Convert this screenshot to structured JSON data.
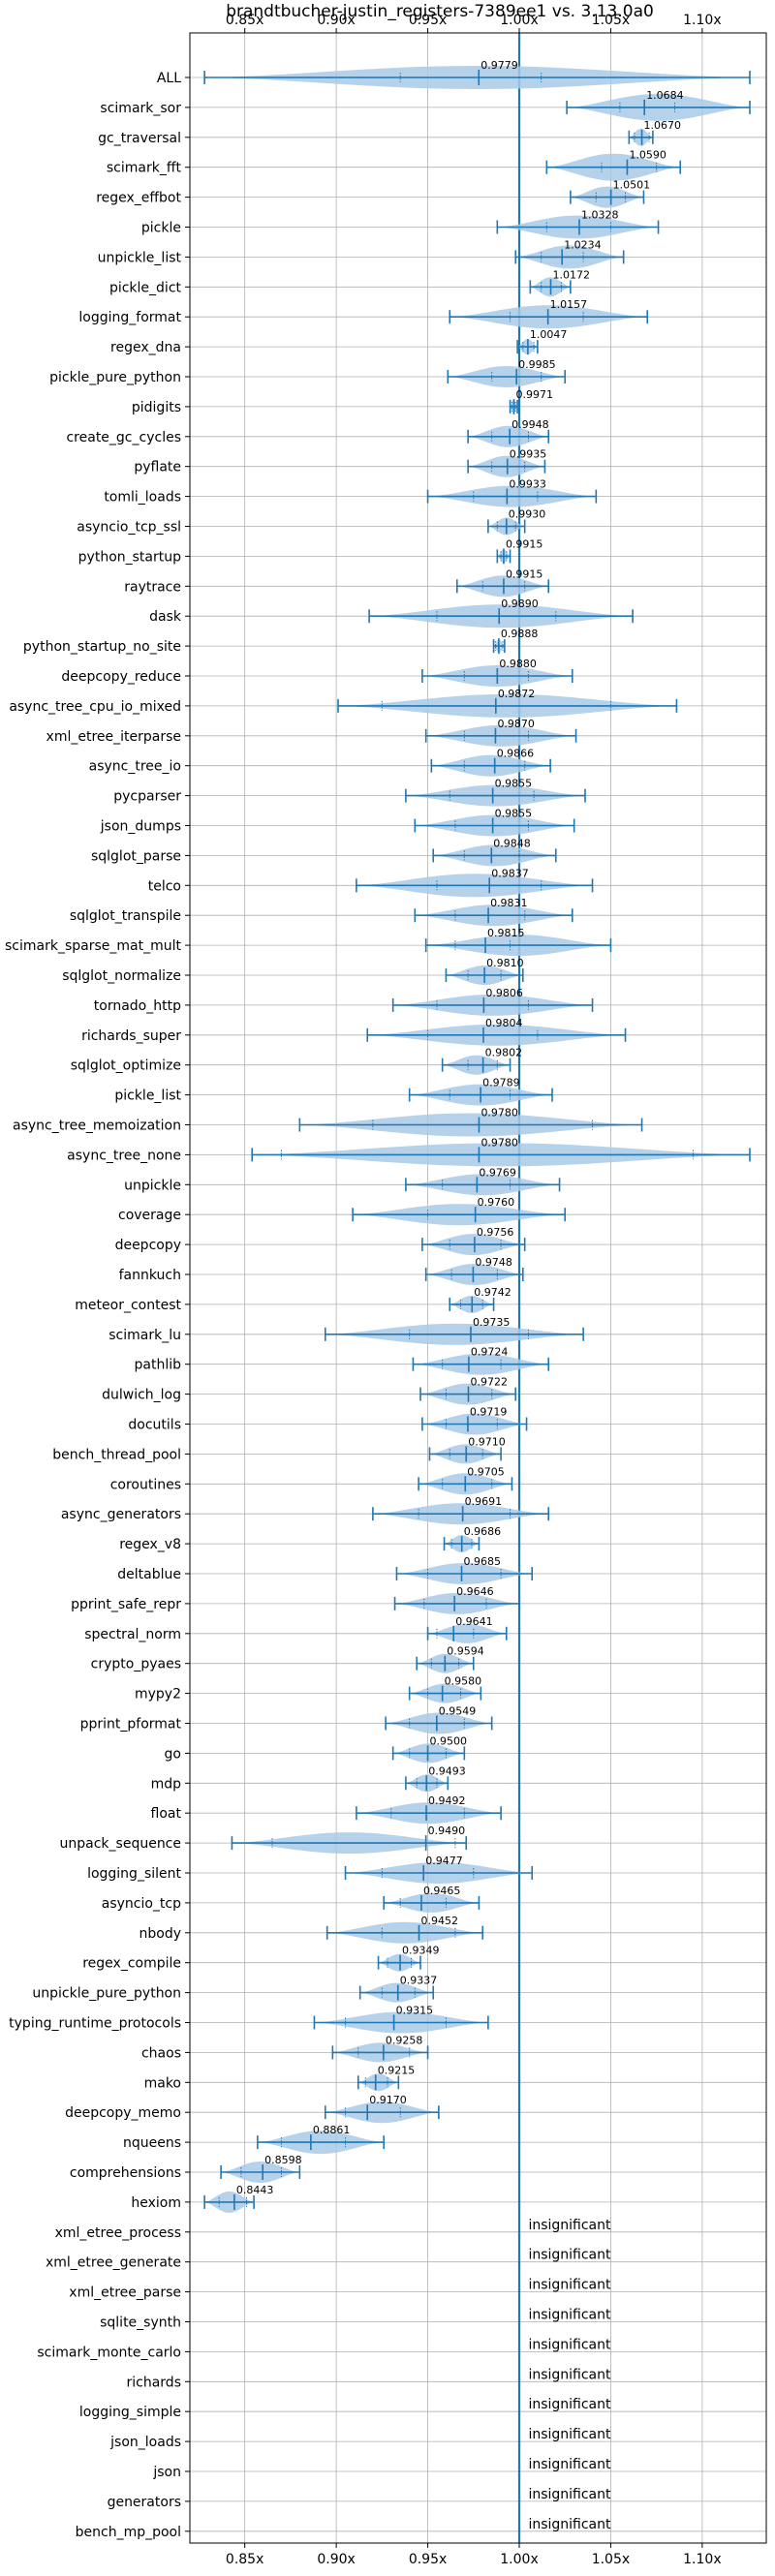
{
  "chart_data": {
    "type": "violin",
    "title": "brandtbucher-justin_registers-7389ee1 vs. 3.13.0a0",
    "xlabel": "",
    "ylabel": "",
    "xlim": [
      0.82,
      1.135
    ],
    "xticks": [
      0.85,
      0.9,
      0.95,
      1.0,
      1.05,
      1.1
    ],
    "xtick_labels": [
      "0.85x",
      "0.90x",
      "0.95x",
      "1.00x",
      "1.05x",
      "1.10x"
    ],
    "reference_line": 1.0,
    "grid": true,
    "colors": {
      "violin": "#a9c9e6",
      "line": "#1f77b4",
      "grid": "#b0b0b0"
    },
    "benchmarks": [
      {
        "name": "ALL",
        "label": "0.9779",
        "mean": 0.9779,
        "min": 0.828,
        "max": 1.126,
        "q1": 0.935,
        "q3": 1.012,
        "halfwidth": 12
      },
      {
        "name": "scimark_sor",
        "label": "1.0684",
        "mean": 1.0684,
        "min": 1.026,
        "max": 1.126,
        "q1": 1.055,
        "q3": 1.085,
        "halfwidth": 14
      },
      {
        "name": "gc_traversal",
        "label": "1.0670",
        "mean": 1.067,
        "min": 1.06,
        "max": 1.073,
        "q1": 1.063,
        "q3": 1.071,
        "halfwidth": 9
      },
      {
        "name": "scimark_fft",
        "label": "1.0590",
        "mean": 1.059,
        "min": 1.015,
        "max": 1.088,
        "q1": 1.045,
        "q3": 1.075,
        "halfwidth": 14
      },
      {
        "name": "regex_effbot",
        "label": "1.0501",
        "mean": 1.0501,
        "min": 1.028,
        "max": 1.068,
        "q1": 1.042,
        "q3": 1.058,
        "halfwidth": 11
      },
      {
        "name": "pickle",
        "label": "1.0328",
        "mean": 1.0328,
        "min": 0.988,
        "max": 1.076,
        "q1": 1.015,
        "q3": 1.05,
        "halfwidth": 12
      },
      {
        "name": "unpickle_list",
        "label": "1.0234",
        "mean": 1.0234,
        "min": 0.998,
        "max": 1.057,
        "q1": 1.012,
        "q3": 1.035,
        "halfwidth": 12
      },
      {
        "name": "pickle_dict",
        "label": "1.0172",
        "mean": 1.0172,
        "min": 1.006,
        "max": 1.028,
        "q1": 1.012,
        "q3": 1.023,
        "halfwidth": 10
      },
      {
        "name": "logging_format",
        "label": "1.0157",
        "mean": 1.0157,
        "min": 0.962,
        "max": 1.07,
        "q1": 0.995,
        "q3": 1.035,
        "halfwidth": 12
      },
      {
        "name": "regex_dna",
        "label": "1.0047",
        "mean": 1.0047,
        "min": 0.999,
        "max": 1.01,
        "q1": 1.002,
        "q3": 1.008,
        "halfwidth": 8
      },
      {
        "name": "pickle_pure_python",
        "label": "0.9985",
        "mean": 0.9985,
        "min": 0.961,
        "max": 1.025,
        "q1": 0.985,
        "q3": 1.012,
        "halfwidth": 11
      },
      {
        "name": "pidigits",
        "label": "0.9971",
        "mean": 0.9971,
        "min": 0.995,
        "max": 0.999,
        "q1": 0.996,
        "q3": 0.998,
        "halfwidth": 7
      },
      {
        "name": "create_gc_cycles",
        "label": "0.9948",
        "mean": 0.9948,
        "min": 0.972,
        "max": 1.016,
        "q1": 0.985,
        "q3": 1.005,
        "halfwidth": 11
      },
      {
        "name": "pyflate",
        "label": "0.9935",
        "mean": 0.9935,
        "min": 0.972,
        "max": 1.014,
        "q1": 0.985,
        "q3": 1.003,
        "halfwidth": 11
      },
      {
        "name": "tomli_loads",
        "label": "0.9933",
        "mean": 0.9933,
        "min": 0.95,
        "max": 1.042,
        "q1": 0.975,
        "q3": 1.01,
        "halfwidth": 11
      },
      {
        "name": "asyncio_tcp_ssl",
        "label": "0.9930",
        "mean": 0.993,
        "min": 0.983,
        "max": 1.003,
        "q1": 0.988,
        "q3": 0.998,
        "halfwidth": 9
      },
      {
        "name": "python_startup",
        "label": "0.9915",
        "mean": 0.9915,
        "min": 0.988,
        "max": 0.995,
        "q1": 0.99,
        "q3": 0.993,
        "halfwidth": 7
      },
      {
        "name": "raytrace",
        "label": "0.9915",
        "mean": 0.9915,
        "min": 0.966,
        "max": 1.016,
        "q1": 0.98,
        "q3": 1.003,
        "halfwidth": 11
      },
      {
        "name": "dask",
        "label": "0.9890",
        "mean": 0.989,
        "min": 0.918,
        "max": 1.062,
        "q1": 0.955,
        "q3": 1.02,
        "halfwidth": 12
      },
      {
        "name": "python_startup_no_site",
        "label": "0.9888",
        "mean": 0.9888,
        "min": 0.986,
        "max": 0.992,
        "q1": 0.987,
        "q3": 0.991,
        "halfwidth": 7
      },
      {
        "name": "deepcopy_reduce",
        "label": "0.9880",
        "mean": 0.988,
        "min": 0.947,
        "max": 1.029,
        "q1": 0.97,
        "q3": 1.005,
        "halfwidth": 11
      },
      {
        "name": "async_tree_cpu_io_mixed",
        "label": "0.9872",
        "mean": 0.9872,
        "min": 0.901,
        "max": 1.086,
        "q1": 0.925,
        "q3": 1.05,
        "halfwidth": 12
      },
      {
        "name": "xml_etree_iterparse",
        "label": "0.9870",
        "mean": 0.987,
        "min": 0.949,
        "max": 1.031,
        "q1": 0.97,
        "q3": 1.005,
        "halfwidth": 11
      },
      {
        "name": "async_tree_io",
        "label": "0.9866",
        "mean": 0.9866,
        "min": 0.952,
        "max": 1.017,
        "q1": 0.97,
        "q3": 1.003,
        "halfwidth": 11
      },
      {
        "name": "pycparser",
        "label": "0.9855",
        "mean": 0.9855,
        "min": 0.938,
        "max": 1.036,
        "q1": 0.962,
        "q3": 1.008,
        "halfwidth": 11
      },
      {
        "name": "json_dumps",
        "label": "0.9855",
        "mean": 0.9855,
        "min": 0.943,
        "max": 1.03,
        "q1": 0.965,
        "q3": 1.005,
        "halfwidth": 11
      },
      {
        "name": "sqlglot_parse",
        "label": "0.9848",
        "mean": 0.9848,
        "min": 0.953,
        "max": 1.02,
        "q1": 0.97,
        "q3": 1.0,
        "halfwidth": 11
      },
      {
        "name": "telco",
        "label": "0.9837",
        "mean": 0.9837,
        "min": 0.911,
        "max": 1.04,
        "q1": 0.955,
        "q3": 1.012,
        "halfwidth": 12
      },
      {
        "name": "sqlglot_transpile",
        "label": "0.9831",
        "mean": 0.9831,
        "min": 0.943,
        "max": 1.029,
        "q1": 0.965,
        "q3": 1.003,
        "halfwidth": 11
      },
      {
        "name": "scimark_sparse_mat_mult",
        "label": "0.9815",
        "mean": 0.9815,
        "min": 0.949,
        "max": 1.05,
        "q1": 0.965,
        "q3": 0.995,
        "halfwidth": 11
      },
      {
        "name": "sqlglot_normalize",
        "label": "0.9810",
        "mean": 0.981,
        "min": 0.96,
        "max": 1.002,
        "q1": 0.972,
        "q3": 0.99,
        "halfwidth": 10
      },
      {
        "name": "tornado_http",
        "label": "0.9806",
        "mean": 0.9806,
        "min": 0.931,
        "max": 1.04,
        "q1": 0.955,
        "q3": 1.005,
        "halfwidth": 11
      },
      {
        "name": "richards_super",
        "label": "0.9804",
        "mean": 0.9804,
        "min": 0.917,
        "max": 1.058,
        "q1": 0.95,
        "q3": 1.01,
        "halfwidth": 11
      },
      {
        "name": "sqlglot_optimize",
        "label": "0.9802",
        "mean": 0.9802,
        "min": 0.958,
        "max": 0.995,
        "q1": 0.972,
        "q3": 0.988,
        "halfwidth": 10
      },
      {
        "name": "pickle_list",
        "label": "0.9789",
        "mean": 0.9789,
        "min": 0.94,
        "max": 1.018,
        "q1": 0.962,
        "q3": 0.995,
        "halfwidth": 11
      },
      {
        "name": "async_tree_memoization",
        "label": "0.9780",
        "mean": 0.978,
        "min": 0.88,
        "max": 1.067,
        "q1": 0.92,
        "q3": 1.04,
        "halfwidth": 12
      },
      {
        "name": "async_tree_none",
        "label": "0.9780",
        "mean": 0.978,
        "min": 0.854,
        "max": 1.126,
        "q1": 0.87,
        "q3": 1.095,
        "halfwidth": 12
      },
      {
        "name": "unpickle",
        "label": "0.9769",
        "mean": 0.9769,
        "min": 0.938,
        "max": 1.022,
        "q1": 0.958,
        "q3": 0.995,
        "halfwidth": 11
      },
      {
        "name": "coverage",
        "label": "0.9760",
        "mean": 0.976,
        "min": 0.909,
        "max": 1.025,
        "q1": 0.95,
        "q3": 1.0,
        "halfwidth": 11
      },
      {
        "name": "deepcopy",
        "label": "0.9756",
        "mean": 0.9756,
        "min": 0.947,
        "max": 1.003,
        "q1": 0.962,
        "q3": 0.99,
        "halfwidth": 11
      },
      {
        "name": "fannkuch",
        "label": "0.9748",
        "mean": 0.9748,
        "min": 0.949,
        "max": 1.002,
        "q1": 0.963,
        "q3": 0.988,
        "halfwidth": 11
      },
      {
        "name": "meteor_contest",
        "label": "0.9742",
        "mean": 0.9742,
        "min": 0.962,
        "max": 0.986,
        "q1": 0.968,
        "q3": 0.98,
        "halfwidth": 9
      },
      {
        "name": "scimark_lu",
        "label": "0.9735",
        "mean": 0.9735,
        "min": 0.894,
        "max": 1.035,
        "q1": 0.94,
        "q3": 1.005,
        "halfwidth": 11
      },
      {
        "name": "pathlib",
        "label": "0.9724",
        "mean": 0.9724,
        "min": 0.942,
        "max": 1.016,
        "q1": 0.958,
        "q3": 0.99,
        "halfwidth": 11
      },
      {
        "name": "dulwich_log",
        "label": "0.9722",
        "mean": 0.9722,
        "min": 0.946,
        "max": 0.998,
        "q1": 0.96,
        "q3": 0.985,
        "halfwidth": 11
      },
      {
        "name": "docutils",
        "label": "0.9719",
        "mean": 0.9719,
        "min": 0.947,
        "max": 1.004,
        "q1": 0.96,
        "q3": 0.988,
        "halfwidth": 11
      },
      {
        "name": "bench_thread_pool",
        "label": "0.9710",
        "mean": 0.971,
        "min": 0.951,
        "max": 0.99,
        "q1": 0.962,
        "q3": 0.98,
        "halfwidth": 10
      },
      {
        "name": "coroutines",
        "label": "0.9705",
        "mean": 0.9705,
        "min": 0.945,
        "max": 0.996,
        "q1": 0.958,
        "q3": 0.985,
        "halfwidth": 11
      },
      {
        "name": "async_generators",
        "label": "0.9691",
        "mean": 0.9691,
        "min": 0.92,
        "max": 1.016,
        "q1": 0.945,
        "q3": 0.995,
        "halfwidth": 11
      },
      {
        "name": "regex_v8",
        "label": "0.9686",
        "mean": 0.9686,
        "min": 0.959,
        "max": 0.978,
        "q1": 0.963,
        "q3": 0.974,
        "halfwidth": 9
      },
      {
        "name": "deltablue",
        "label": "0.9685",
        "mean": 0.9685,
        "min": 0.933,
        "max": 1.007,
        "q1": 0.95,
        "q3": 0.99,
        "halfwidth": 11
      },
      {
        "name": "pprint_safe_repr",
        "label": "0.9646",
        "mean": 0.9646,
        "min": 0.932,
        "max": 1.0,
        "q1": 0.948,
        "q3": 0.982,
        "halfwidth": 11
      },
      {
        "name": "spectral_norm",
        "label": "0.9641",
        "mean": 0.9641,
        "min": 0.95,
        "max": 0.993,
        "q1": 0.955,
        "q3": 0.975,
        "halfwidth": 10
      },
      {
        "name": "crypto_pyaes",
        "label": "0.9594",
        "mean": 0.9594,
        "min": 0.944,
        "max": 0.975,
        "q1": 0.952,
        "q3": 0.967,
        "halfwidth": 10
      },
      {
        "name": "mypy2",
        "label": "0.9580",
        "mean": 0.958,
        "min": 0.94,
        "max": 0.979,
        "q1": 0.95,
        "q3": 0.968,
        "halfwidth": 10
      },
      {
        "name": "pprint_pformat",
        "label": "0.9549",
        "mean": 0.9549,
        "min": 0.927,
        "max": 0.985,
        "q1": 0.94,
        "q3": 0.97,
        "halfwidth": 11
      },
      {
        "name": "go",
        "label": "0.9500",
        "mean": 0.95,
        "min": 0.931,
        "max": 0.97,
        "q1": 0.94,
        "q3": 0.96,
        "halfwidth": 10
      },
      {
        "name": "mdp",
        "label": "0.9493",
        "mean": 0.9493,
        "min": 0.938,
        "max": 0.961,
        "q1": 0.944,
        "q3": 0.955,
        "halfwidth": 9
      },
      {
        "name": "float",
        "label": "0.9492",
        "mean": 0.9492,
        "min": 0.911,
        "max": 0.99,
        "q1": 0.93,
        "q3": 0.97,
        "halfwidth": 11
      },
      {
        "name": "unpack_sequence",
        "label": "0.9490",
        "mean": 0.949,
        "min": 0.843,
        "max": 0.971,
        "q1": 0.865,
        "q3": 0.965,
        "halfwidth": 11
      },
      {
        "name": "logging_silent",
        "label": "0.9477",
        "mean": 0.9477,
        "min": 0.905,
        "max": 1.007,
        "q1": 0.925,
        "q3": 0.975,
        "halfwidth": 11
      },
      {
        "name": "asyncio_tcp",
        "label": "0.9465",
        "mean": 0.9465,
        "min": 0.926,
        "max": 0.978,
        "q1": 0.935,
        "q3": 0.96,
        "halfwidth": 10
      },
      {
        "name": "nbody",
        "label": "0.9452",
        "mean": 0.9452,
        "min": 0.895,
        "max": 0.98,
        "q1": 0.925,
        "q3": 0.965,
        "halfwidth": 11
      },
      {
        "name": "regex_compile",
        "label": "0.9349",
        "mean": 0.9349,
        "min": 0.923,
        "max": 0.946,
        "q1": 0.928,
        "q3": 0.941,
        "halfwidth": 9
      },
      {
        "name": "unpickle_pure_python",
        "label": "0.9337",
        "mean": 0.9337,
        "min": 0.913,
        "max": 0.953,
        "q1": 0.925,
        "q3": 0.943,
        "halfwidth": 10
      },
      {
        "name": "typing_runtime_protocols",
        "label": "0.9315",
        "mean": 0.9315,
        "min": 0.888,
        "max": 0.983,
        "q1": 0.905,
        "q3": 0.96,
        "halfwidth": 11
      },
      {
        "name": "chaos",
        "label": "0.9258",
        "mean": 0.9258,
        "min": 0.898,
        "max": 0.95,
        "q1": 0.912,
        "q3": 0.94,
        "halfwidth": 10
      },
      {
        "name": "mako",
        "label": "0.9215",
        "mean": 0.9215,
        "min": 0.912,
        "max": 0.934,
        "q1": 0.916,
        "q3": 0.928,
        "halfwidth": 9
      },
      {
        "name": "deepcopy_memo",
        "label": "0.9170",
        "mean": 0.917,
        "min": 0.894,
        "max": 0.956,
        "q1": 0.905,
        "q3": 0.935,
        "halfwidth": 11
      },
      {
        "name": "nqueens",
        "label": "0.8861",
        "mean": 0.8861,
        "min": 0.857,
        "max": 0.926,
        "q1": 0.87,
        "q3": 0.905,
        "halfwidth": 12
      },
      {
        "name": "comprehensions",
        "label": "0.8598",
        "mean": 0.8598,
        "min": 0.837,
        "max": 0.88,
        "q1": 0.848,
        "q3": 0.87,
        "halfwidth": 11
      },
      {
        "name": "hexiom",
        "label": "0.8443",
        "mean": 0.8443,
        "min": 0.828,
        "max": 0.855,
        "q1": 0.836,
        "q3": 0.851,
        "halfwidth": 11
      },
      {
        "name": "xml_etree_process",
        "label": "insignificant"
      },
      {
        "name": "xml_etree_generate",
        "label": "insignificant"
      },
      {
        "name": "xml_etree_parse",
        "label": "insignificant"
      },
      {
        "name": "sqlite_synth",
        "label": "insignificant"
      },
      {
        "name": "scimark_monte_carlo",
        "label": "insignificant"
      },
      {
        "name": "richards",
        "label": "insignificant"
      },
      {
        "name": "logging_simple",
        "label": "insignificant"
      },
      {
        "name": "json_loads",
        "label": "insignificant"
      },
      {
        "name": "json",
        "label": "insignificant"
      },
      {
        "name": "generators",
        "label": "insignificant"
      },
      {
        "name": "bench_mp_pool",
        "label": "insignificant"
      }
    ]
  }
}
